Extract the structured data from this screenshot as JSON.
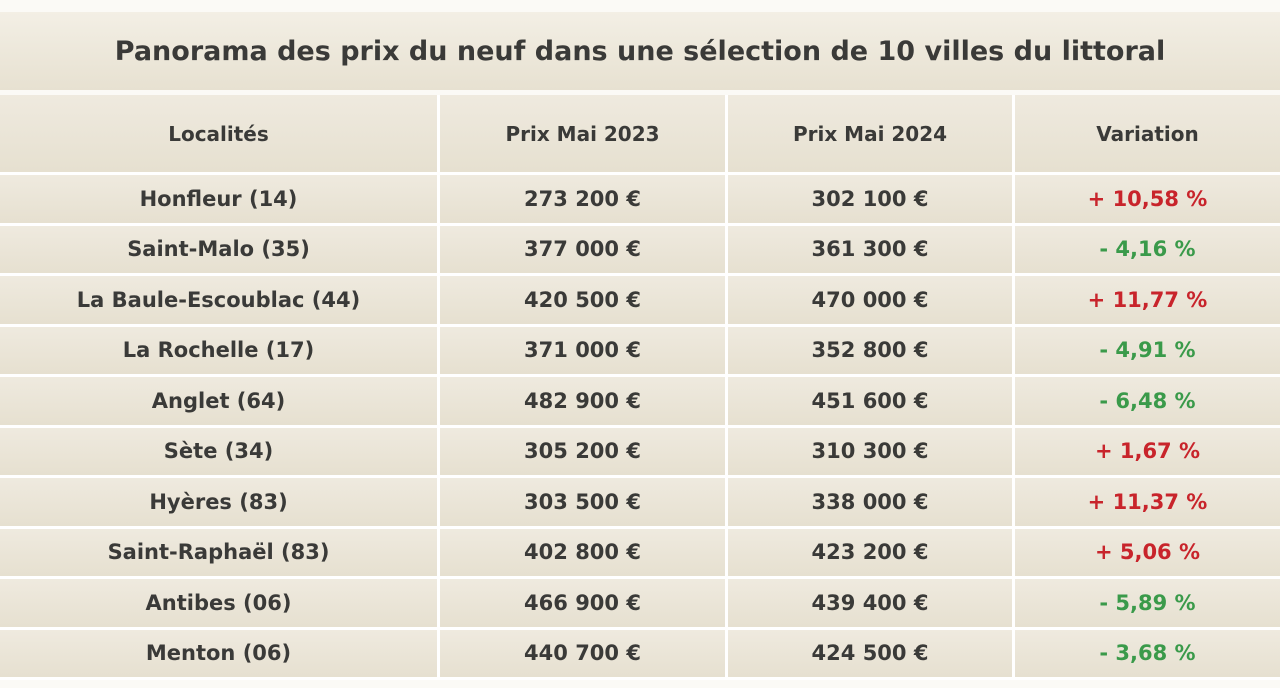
{
  "title": "Panorama des prix du neuf dans une sélection de 10 villes du littoral",
  "table": {
    "headers": [
      "Localités",
      "Prix Mai 2023",
      "Prix Mai 2024",
      "Variation"
    ],
    "rows": [
      [
        "Honfleur (14)",
        "273 200 €",
        "302 100 €",
        "+ 10,58 %"
      ],
      [
        "Saint-Malo (35)",
        "377 000 €",
        "361 300 €",
        "- 4,16 %"
      ],
      [
        "La Baule-Escoublac (44)",
        "420 500 €",
        "470 000 €",
        "+ 11,77 %"
      ],
      [
        "La Rochelle (17)",
        "371 000 €",
        "352 800 €",
        "- 4,91 %"
      ],
      [
        "Anglet  (64)",
        "482 900 €",
        "451 600 €",
        "- 6,48 %"
      ],
      [
        "Sète (34)",
        "305 200 €",
        "310 300 €",
        "+ 1,67 %"
      ],
      [
        "Hyères (83)",
        "303 500 €",
        "338 000 €",
        "+ 11,37 %"
      ],
      [
        "Saint-Raphaël (83)",
        "402 800 €",
        "423 200 €",
        "+ 5,06 %"
      ],
      [
        "Antibes (06)",
        "466 900 €",
        "439 400 €",
        "- 5,89 %"
      ],
      [
        "Menton (06)",
        "440 700 €",
        "424 500 €",
        "- 3,68 %"
      ]
    ],
    "variation_colors": {
      "increase": "#c8242b",
      "decrease": "#3a9a4a"
    }
  }
}
